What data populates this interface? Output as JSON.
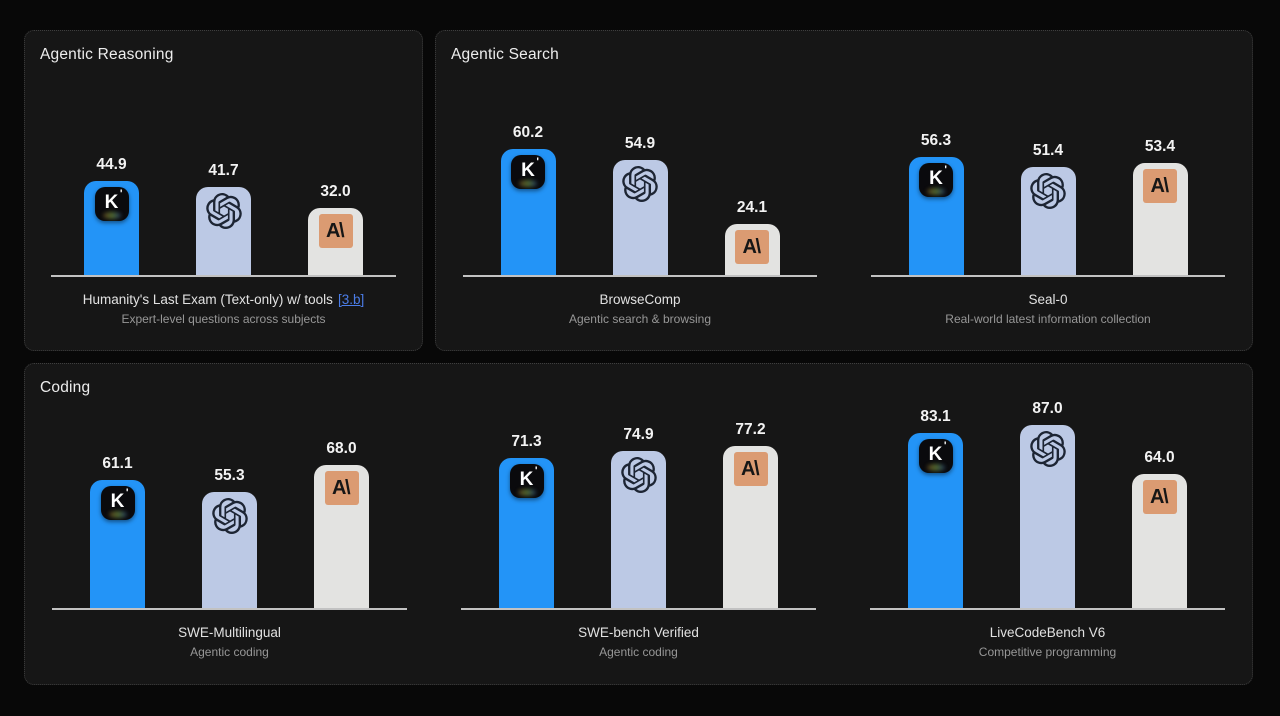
{
  "colors": {
    "page_bg": "#080808",
    "panel_bg": "#161616",
    "panel_border": "#3e3e3e",
    "panel_title": "#ededed",
    "value_label": "#f3f3f3",
    "bench_title": "#e2e2e2",
    "bench_subtitle": "#979797",
    "link": "#4b7de8",
    "axis": "#c2c2c2",
    "kimi_bar": "#2394f7",
    "openai_bar": "#bcc9e5",
    "anthropic_bar": "#e3e3e1",
    "openai_logo": "#1d2534",
    "anthropic_logo_bg": "#db9b72"
  },
  "models": [
    {
      "name": "Kimi",
      "icon": "kimi-logo-icon",
      "glyph": "K",
      "tick": "'",
      "bar_color_key": "kimi_bar"
    },
    {
      "name": "OpenAI",
      "icon": "openai-logo-icon",
      "bar_color_key": "openai_bar"
    },
    {
      "name": "Anthropic",
      "icon": "anthropic-logo-icon",
      "glyph": "A\\",
      "bar_color_key": "anthropic_bar"
    }
  ],
  "panels": [
    {
      "title": "Agentic Reasoning",
      "row": 0,
      "charts": [
        0
      ]
    },
    {
      "title": "Agentic Search",
      "row": 0,
      "charts": [
        1,
        2
      ]
    },
    {
      "title": "Coding",
      "row": 1,
      "charts": [
        3,
        4,
        5
      ]
    }
  ],
  "chart_data": [
    {
      "type": "bar",
      "title": "Humanity's Last Exam (Text-only) w/ tools",
      "title_link": "[3.b]",
      "subtitle": "Expert-level questions across subjects",
      "categories": [
        "Kimi",
        "OpenAI",
        "Anthropic"
      ],
      "values": [
        44.9,
        41.7,
        32.0
      ],
      "ylim": [
        0,
        100
      ],
      "grid": false,
      "legend": "logos-on-bars"
    },
    {
      "type": "bar",
      "title": "BrowseComp",
      "subtitle": "Agentic search & browsing",
      "categories": [
        "Kimi",
        "OpenAI",
        "Anthropic"
      ],
      "values": [
        60.2,
        54.9,
        24.1
      ],
      "ylim": [
        0,
        100
      ],
      "grid": false,
      "legend": "logos-on-bars"
    },
    {
      "type": "bar",
      "title": "Seal-0",
      "subtitle": "Real-world latest information collection",
      "categories": [
        "Kimi",
        "OpenAI",
        "Anthropic"
      ],
      "values": [
        56.3,
        51.4,
        53.4
      ],
      "ylim": [
        0,
        100
      ],
      "grid": false,
      "legend": "logos-on-bars"
    },
    {
      "type": "bar",
      "title": "SWE-Multilingual",
      "subtitle": "Agentic coding",
      "categories": [
        "Kimi",
        "OpenAI",
        "Anthropic"
      ],
      "values": [
        61.1,
        55.3,
        68.0
      ],
      "ylim": [
        0,
        100
      ],
      "grid": false,
      "legend": "logos-on-bars"
    },
    {
      "type": "bar",
      "title": "SWE-bench Verified",
      "subtitle": "Agentic coding",
      "categories": [
        "Kimi",
        "OpenAI",
        "Anthropic"
      ],
      "values": [
        71.3,
        74.9,
        77.2
      ],
      "ylim": [
        0,
        100
      ],
      "grid": false,
      "legend": "logos-on-bars"
    },
    {
      "type": "bar",
      "title": "LiveCodeBench V6",
      "subtitle": "Competitive programming",
      "categories": [
        "Kimi",
        "OpenAI",
        "Anthropic"
      ],
      "values": [
        83.1,
        87.0,
        64.0
      ],
      "ylim": [
        0,
        100
      ],
      "grid": false,
      "legend": "logos-on-bars"
    }
  ]
}
